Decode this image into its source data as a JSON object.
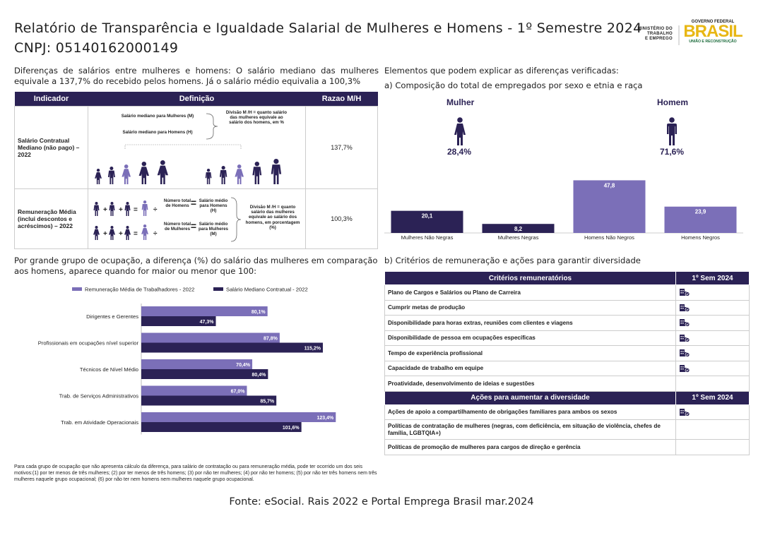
{
  "header": {
    "title": "Relatório de Transparência e Igualdade Salarial de Mulheres e Homens - 1º Semestre 2024",
    "cnpj": "CNPJ: 05140162000149",
    "ministry": [
      "MINISTÉRIO DO",
      "TRABALHO",
      "E EMPREGO"
    ],
    "gov_top": "GOVERNO FEDERAL",
    "gov_brand": "BRASIL",
    "gov_sub": "UNIÃO E RECONSTRUÇÃO"
  },
  "intro_left": "Diferenças de salários entre mulheres e homens: O salário mediano das mulheres equivale a 137,7% do recebido pelos homens. Já o salário médio equivalia a 100,3%",
  "intro_right": "Elementos que podem explicar as diferenças verificadas:",
  "section_a": "a) Composição do total de empregados por sexo e etnia e raça",
  "section_b": "b) Critérios de remuneração e ações para garantir diversidade",
  "salary_table": {
    "headers": [
      "Indicador",
      "Definição",
      "Razao M/H"
    ],
    "rows": [
      {
        "indicator": "Salário Contratual Mediano (não pago) – 2022",
        "ratio": "137,7%",
        "def": {
          "line1": "Salário mediano para Mulheres (M)",
          "line2": "Salário mediano para Homens (H)",
          "division": "Divisão M /H = quanto salário das mulheres equivale ao salário dos homens, em %"
        }
      },
      {
        "indicator": "Remuneração Média (inclui descontos e acréscimos) – 2022",
        "ratio": "100,3%",
        "def": {
          "total_h": "Número total de Homens",
          "total_m": "Número total de Mulheres",
          "avg_h": "Salário médio para Homens (H)",
          "avg_m": "Salário médio para Mulheres (M)",
          "division": "Divisão M /H = quanto salário das mulheres equivale ao salário dos homens, em porcentagem (%)"
        }
      }
    ]
  },
  "composition": {
    "woman_label": "Mulher",
    "man_label": "Homem",
    "woman_pct": "28,4%",
    "man_pct": "71,6%"
  },
  "occupation_intro": "Por grande grupo de ocupação, a diferença (%) do salário das mulheres em comparação aos homens, aparece quando for maior ou menor que 100:",
  "chart_data": [
    {
      "type": "bar",
      "categories": [
        "Mulheres Não Negras",
        "Mulheres Negras",
        "Homens Não Negros",
        "Homens Negros"
      ],
      "values": [
        20.1,
        8.2,
        47.8,
        23.9
      ],
      "value_labels": [
        "20,1",
        "8,2",
        "47,8",
        "23,9"
      ],
      "colors": [
        "#2b2255",
        "#2b2255",
        "#7b6fb8",
        "#7b6fb8"
      ],
      "ylim": [
        0,
        50
      ]
    },
    {
      "type": "bar",
      "orientation": "horizontal",
      "categories": [
        "Dirigentes e Gerentes",
        "Profissionais em ocupações nível superior",
        "Técnicos de Nível Médio",
        "Trab. de Serviços Administrativos",
        "Trab. em Atividade Operacionais"
      ],
      "series": [
        {
          "name": "Remuneração Média de Trabalhadores - 2022",
          "color": "#7b6fb8",
          "values": [
            80.1,
            87.8,
            70.4,
            67.0,
            123.4
          ],
          "labels": [
            "80,1%",
            "87,8%",
            "70,4%",
            "67,0%",
            "123,4%"
          ]
        },
        {
          "name": "Salário Mediano Contratual - 2022",
          "color": "#2b2255",
          "values": [
            47.3,
            115.2,
            80.4,
            85.7,
            101.6
          ],
          "labels": [
            "47,3%",
            "115,2%",
            "80,4%",
            "85,7%",
            "101,6%"
          ]
        }
      ],
      "legend": "top",
      "xlim": [
        0,
        130
      ]
    }
  ],
  "criteria_table": {
    "header": "Critérios remuneratórios",
    "period": "1º Sem 2024",
    "rows": [
      {
        "label": "Plano de Cargos e Salários ou Plano de Carreira",
        "check": true
      },
      {
        "label": "Cumprir metas de produção",
        "check": true
      },
      {
        "label": "Disponibilidade para horas extras, reuniões com clientes e viagens",
        "check": true
      },
      {
        "label": "Disponibilidade de pessoa em ocupações específicas",
        "check": true
      },
      {
        "label": "Tempo de experiência profissional",
        "check": true
      },
      {
        "label": "Capacidade de trabalho em equipe",
        "check": true
      },
      {
        "label": "Proatividade, desenvolvimento de ideias e sugestões",
        "check": false
      }
    ]
  },
  "diversity_table": {
    "header": "Ações para aumentar a diversidade",
    "period": "1º Sem 2024",
    "rows": [
      {
        "label": "Ações de apoio a compartilhamento de obrigações familiares para ambos os sexos",
        "check": true
      },
      {
        "label": "Políticas de contratação de mulheres (negras, com deficiência, em situação de violência, chefes de família, LGBTQIA+)",
        "check": false
      },
      {
        "label": "Políticas de promoção de mulheres para cargos de direção e gerência",
        "check": false
      }
    ]
  },
  "footnote": "Para cada grupo de ocupação que não apresenta cálculo da diferença, para salário de contratação ou para remuneração média, pode ter ocorrido um dos seis motivos:(1) por ter menos de três mulheres; (2) por ter menos de três homens; (3) por não ter mulheres; (4) por não ter homens; (5) por não ter três homens nem três mulheres naquele grupo ocupacional; (6) por não ter nem homens nem mulheres naquele grupo ocupacional.",
  "source": "Fonte: eSocial. Rais 2022 e Portal Emprega Brasil mar.2024",
  "icons": {
    "check": "building-check-icon",
    "woman": "woman-icon",
    "man": "man-icon"
  }
}
